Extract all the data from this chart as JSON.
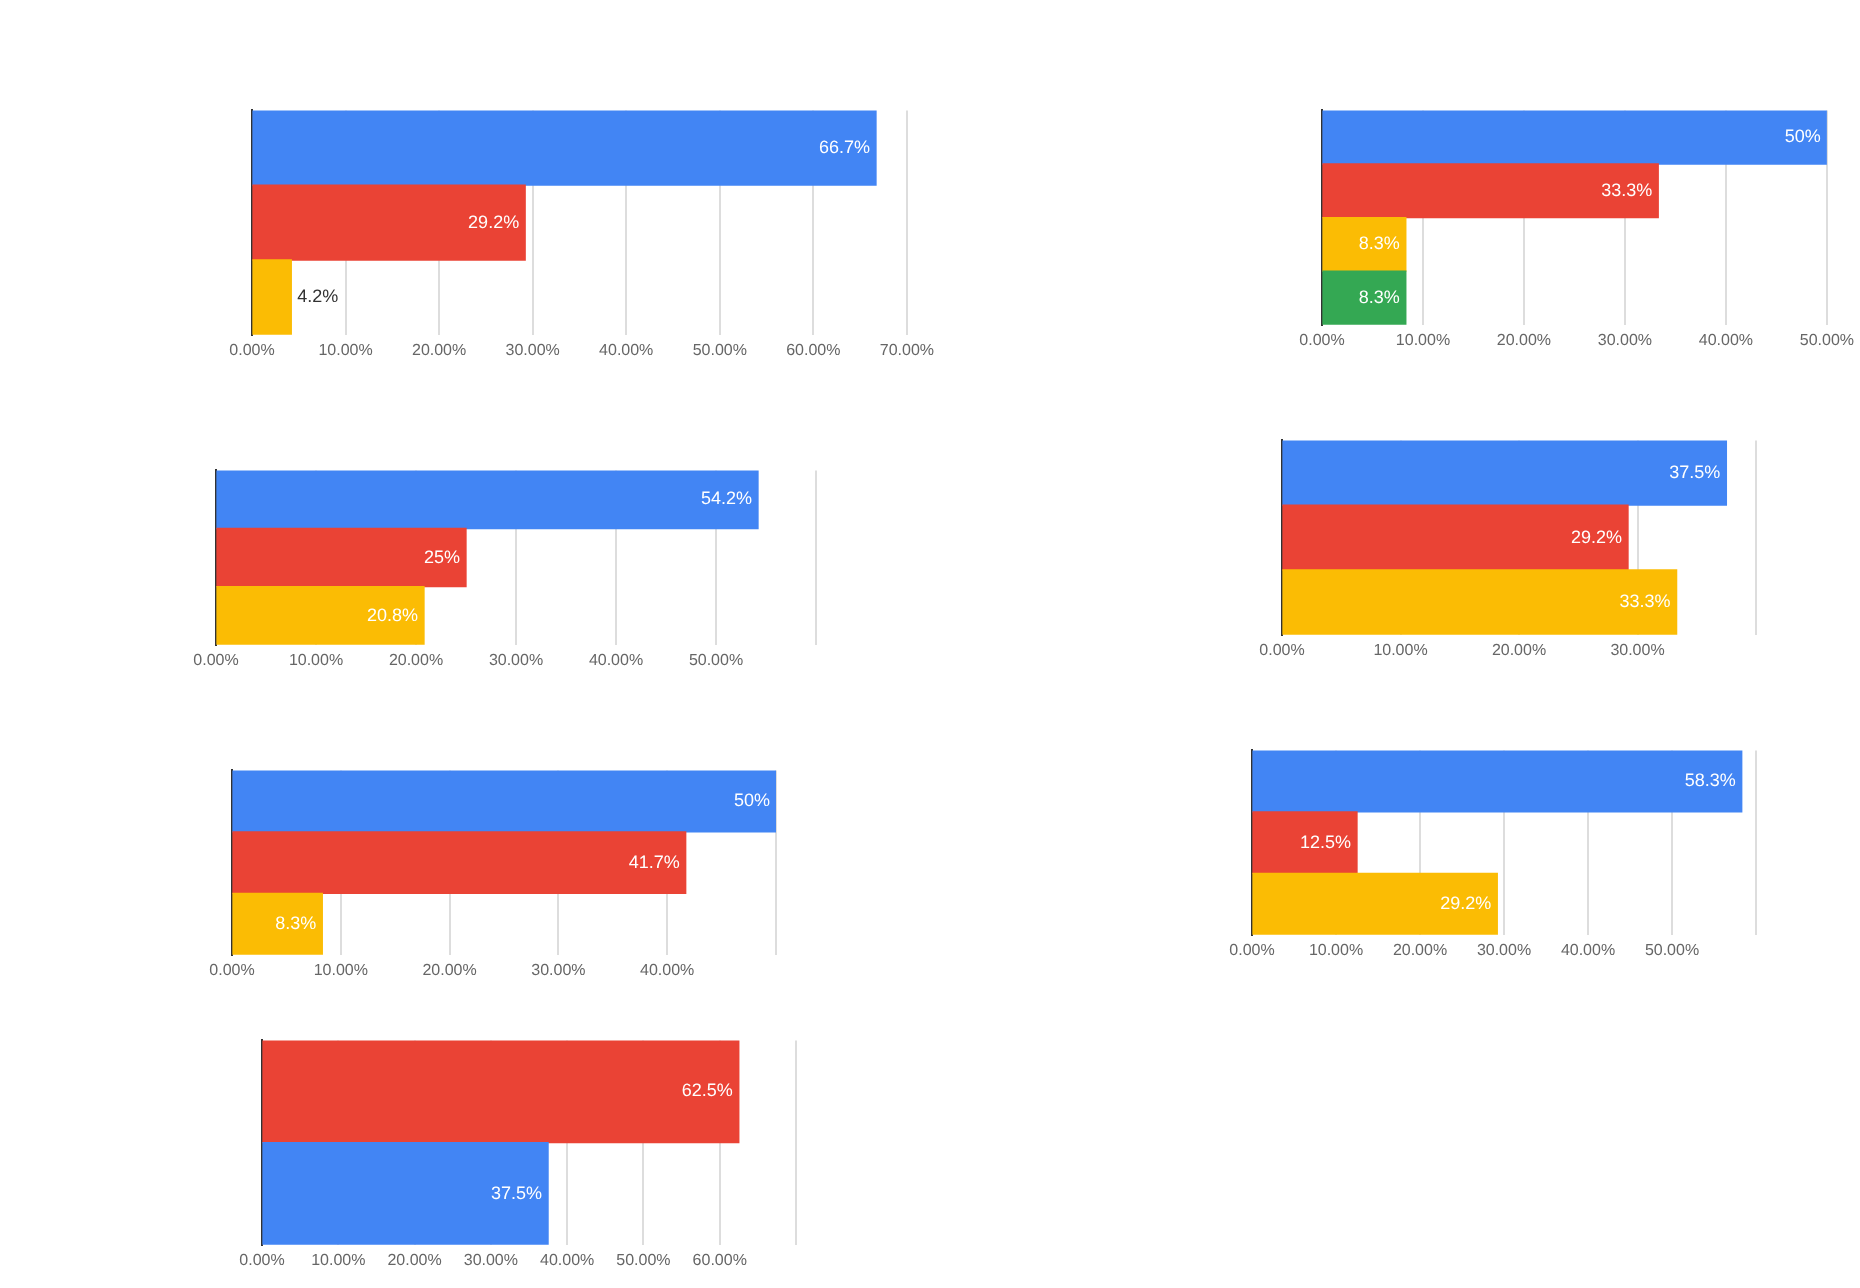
{
  "chart_data": [
    {
      "type": "bar",
      "orientation": "horizontal",
      "categories": [
        null,
        null,
        null
      ],
      "values": [
        66.7,
        29.2,
        4.2
      ],
      "colors": [
        "#4285f4",
        "#ea4335",
        "#fbbc04"
      ],
      "value_labels": [
        "66.7%",
        "29.2%",
        "4.2%"
      ],
      "xlim": [
        0,
        70
      ],
      "xticks": [
        {
          "value": 0,
          "label": "0.00%"
        },
        {
          "value": 10,
          "label": "10.00%"
        },
        {
          "value": 20,
          "label": "20.00%"
        },
        {
          "value": 30,
          "label": "30.00%"
        },
        {
          "value": 40,
          "label": "40.00%"
        },
        {
          "value": 50,
          "label": "50.00%"
        },
        {
          "value": 60,
          "label": "60.00%"
        },
        {
          "value": 70,
          "label": "70.00%"
        }
      ],
      "grid": "x"
    },
    {
      "type": "bar",
      "orientation": "horizontal",
      "categories": [
        null,
        null,
        null,
        null
      ],
      "values": [
        50,
        33.3,
        8.3,
        8.3
      ],
      "colors": [
        "#4285f4",
        "#ea4335",
        "#fbbc04",
        "#34a853"
      ],
      "value_labels": [
        "50%",
        "33.3%",
        "8.3%",
        "8.3%"
      ],
      "xlim": [
        0,
        50
      ],
      "xticks": [
        {
          "value": 0,
          "label": "0.00%"
        },
        {
          "value": 10,
          "label": "10.00%"
        },
        {
          "value": 20,
          "label": "20.00%"
        },
        {
          "value": 30,
          "label": "30.00%"
        },
        {
          "value": 40,
          "label": "40.00%"
        },
        {
          "value": 50,
          "label": "50.00%"
        }
      ],
      "grid": "x"
    },
    {
      "type": "bar",
      "orientation": "horizontal",
      "categories": [
        null,
        null,
        null
      ],
      "values": [
        54.2,
        25,
        20.8
      ],
      "colors": [
        "#4285f4",
        "#ea4335",
        "#fbbc04"
      ],
      "value_labels": [
        "54.2%",
        "25%",
        "20.8%"
      ],
      "xlim": [
        0,
        60
      ],
      "xticks": [
        {
          "value": 0,
          "label": "0.00%"
        },
        {
          "value": 10,
          "label": "10.00%"
        },
        {
          "value": 20,
          "label": "20.00%"
        },
        {
          "value": 30,
          "label": "30.00%"
        },
        {
          "value": 40,
          "label": "40.00%"
        },
        {
          "value": 50,
          "label": "50.00%"
        },
        {
          "value": 60,
          "label": null
        }
      ],
      "grid": "x"
    },
    {
      "type": "bar",
      "orientation": "horizontal",
      "categories": [
        null,
        null,
        null
      ],
      "values": [
        37.5,
        29.2,
        33.3
      ],
      "colors": [
        "#4285f4",
        "#ea4335",
        "#fbbc04"
      ],
      "value_labels": [
        "37.5%",
        "29.2%",
        "33.3%"
      ],
      "xlim": [
        0,
        40
      ],
      "xticks": [
        {
          "value": 0,
          "label": "0.00%"
        },
        {
          "value": 10,
          "label": "10.00%"
        },
        {
          "value": 20,
          "label": "20.00%"
        },
        {
          "value": 30,
          "label": "30.00%"
        },
        {
          "value": 40,
          "label": null
        }
      ],
      "grid": "x"
    },
    {
      "type": "bar",
      "orientation": "horizontal",
      "categories": [
        null,
        null,
        null
      ],
      "values": [
        50,
        41.7,
        8.3
      ],
      "colors": [
        "#4285f4",
        "#ea4335",
        "#fbbc04"
      ],
      "value_labels": [
        "50%",
        "41.7%",
        "8.3%"
      ],
      "xlim": [
        0,
        50
      ],
      "xticks": [
        {
          "value": 0,
          "label": "0.00%"
        },
        {
          "value": 10,
          "label": "10.00%"
        },
        {
          "value": 20,
          "label": "20.00%"
        },
        {
          "value": 30,
          "label": "30.00%"
        },
        {
          "value": 40,
          "label": "40.00%"
        },
        {
          "value": 50,
          "label": null
        }
      ],
      "grid": "x"
    },
    {
      "type": "bar",
      "orientation": "horizontal",
      "categories": [
        null,
        null,
        null
      ],
      "values": [
        58.3,
        12.5,
        29.2
      ],
      "colors": [
        "#4285f4",
        "#ea4335",
        "#fbbc04"
      ],
      "value_labels": [
        "58.3%",
        "12.5%",
        "29.2%"
      ],
      "xlim": [
        0,
        60
      ],
      "xticks": [
        {
          "value": 0,
          "label": "0.00%"
        },
        {
          "value": 10,
          "label": "10.00%"
        },
        {
          "value": 20,
          "label": "20.00%"
        },
        {
          "value": 30,
          "label": "30.00%"
        },
        {
          "value": 40,
          "label": "40.00%"
        },
        {
          "value": 50,
          "label": "50.00%"
        },
        {
          "value": 60,
          "label": null
        }
      ],
      "grid": "x"
    },
    {
      "type": "bar",
      "orientation": "horizontal",
      "categories": [
        null,
        null
      ],
      "values": [
        62.5,
        37.5
      ],
      "colors": [
        "#ea4335",
        "#4285f4"
      ],
      "value_labels": [
        "62.5%",
        "37.5%"
      ],
      "xlim": [
        0,
        70
      ],
      "xticks": [
        {
          "value": 0,
          "label": "0.00%"
        },
        {
          "value": 10,
          "label": "10.00%"
        },
        {
          "value": 20,
          "label": "20.00%"
        },
        {
          "value": 30,
          "label": "30.00%"
        },
        {
          "value": 40,
          "label": "40.00%"
        },
        {
          "value": 50,
          "label": "50.00%"
        },
        {
          "value": 60,
          "label": "60.00%"
        },
        {
          "value": 70,
          "label": null
        }
      ],
      "grid": "x"
    }
  ]
}
